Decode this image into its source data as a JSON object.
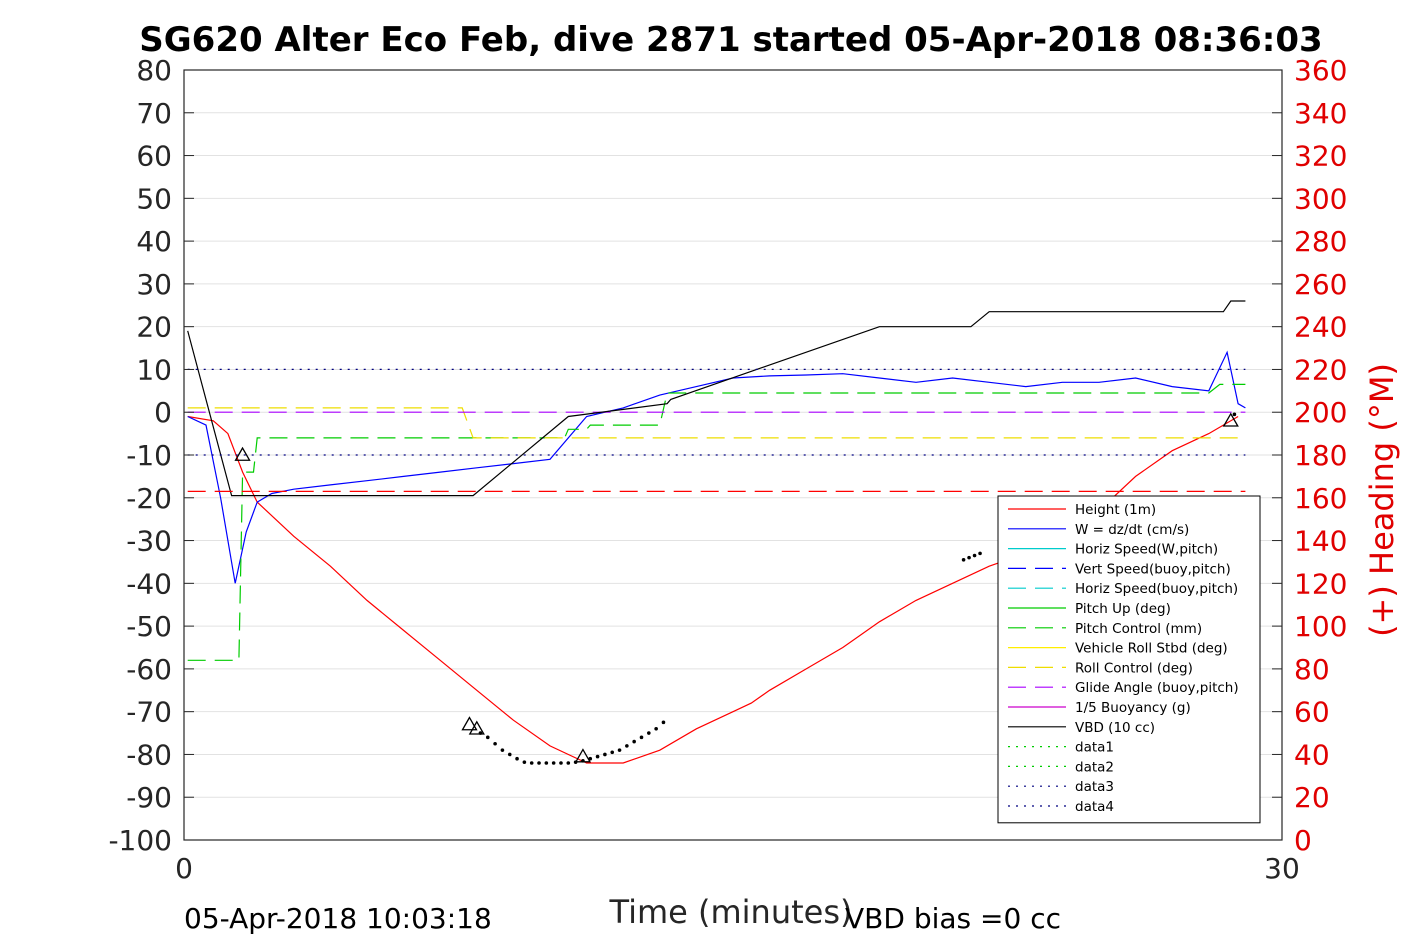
{
  "chart_data": {
    "type": "line",
    "title": "SG620 Alter Eco Feb, dive 2871 started 05-Apr-2018 08:36:03",
    "xlabel": "Time (minutes)",
    "ylabel_right": "(+) Heading (°M)",
    "xlim": [
      0,
      30
    ],
    "ylim_left": [
      -100,
      80
    ],
    "ylim_right": [
      0,
      360
    ],
    "x_ticks": [
      "0",
      "30"
    ],
    "y_ticks_left": [
      "80",
      "70",
      "60",
      "50",
      "40",
      "30",
      "20",
      "10",
      "0",
      "-10",
      "-20",
      "-30",
      "-40",
      "-50",
      "-60",
      "-70",
      "-80",
      "-90",
      "-100"
    ],
    "y_ticks_right": [
      "360",
      "340",
      "320",
      "300",
      "280",
      "260",
      "240",
      "220",
      "200",
      "180",
      "160",
      "140",
      "120",
      "100",
      "80",
      "60",
      "40",
      "20",
      "0"
    ],
    "grid": "horizontal",
    "legend_position": "bottom-right",
    "footer_left": "05-Apr-2018 10:03:18",
    "footer_right": "VBD bias =0 cc",
    "series": [
      {
        "name": "Height (1m)",
        "color": "#ff0000",
        "style": "solid",
        "x": [
          0.1,
          0.8,
          1.2,
          1.6,
          2.0,
          3,
          4,
          5,
          6,
          7,
          8,
          9,
          10,
          11,
          12,
          13,
          14,
          15,
          15.5,
          16,
          17,
          18,
          19,
          20,
          21,
          22,
          23,
          24,
          25,
          26,
          27,
          28,
          28.8
        ],
        "y": [
          -1,
          -2,
          -5,
          -14,
          -21,
          -29,
          -36,
          -44,
          -51,
          -58,
          -65,
          -72,
          -78,
          -82,
          -82,
          -79,
          -74,
          -70,
          -68,
          -65,
          -60,
          -55,
          -49,
          -44,
          -40,
          -36,
          -33,
          -29,
          -23,
          -15,
          -9,
          -5,
          -1
        ]
      },
      {
        "name": "W = dz/dt (cm/s)",
        "color": "#0000ff",
        "style": "solid",
        "x": [
          0.1,
          0.6,
          1.0,
          1.4,
          1.7,
          2.0,
          2.4,
          3,
          4,
          5,
          6,
          7,
          8,
          9,
          10,
          11,
          11.5,
          12,
          13,
          14,
          15,
          16,
          17,
          18,
          19,
          20,
          21,
          22,
          23,
          24,
          25,
          26,
          27,
          28,
          28.5,
          28.8,
          29.0
        ],
        "y": [
          -1,
          -3,
          -20,
          -40,
          -28,
          -21,
          -19,
          -18,
          -17,
          -16,
          -15,
          -14,
          -13,
          -12,
          -11,
          -1,
          0,
          1,
          4,
          6,
          8,
          8.5,
          8.7,
          9,
          8,
          7,
          8,
          7,
          6,
          7,
          7,
          8,
          6,
          5,
          14,
          2,
          1
        ]
      },
      {
        "name": "Horiz Speed(W,pitch)",
        "color": "#00cccc",
        "style": "solid",
        "x": [],
        "y": []
      },
      {
        "name": "Vert Speed(buoy,pitch)",
        "color": "#0000ff",
        "style": "dash",
        "x": [],
        "y": []
      },
      {
        "name": "Horiz Speed(buoy,pitch)",
        "color": "#00cccc",
        "style": "dash",
        "x": [],
        "y": []
      },
      {
        "name": "Pitch Up (deg)",
        "color": "#00cc00",
        "style": "solid",
        "x": [],
        "y": []
      },
      {
        "name": "Pitch Control (mm)",
        "color": "#00cc00",
        "style": "dash",
        "x": [
          0.1,
          1.5,
          1.6,
          1.9,
          2.0,
          7.8,
          7.9,
          10.4,
          10.5,
          11.0,
          11.1,
          13.0,
          13.2,
          28.0,
          28.3,
          29.0
        ],
        "y": [
          -58,
          -58,
          -14,
          -14,
          -6,
          -6,
          -6,
          -6,
          -4,
          -4,
          -3,
          -3,
          4.5,
          4.5,
          6.5,
          6.5
        ]
      },
      {
        "name": "Vehicle Roll Stbd (deg)",
        "color": "#ffee00",
        "style": "solid",
        "x": [],
        "y": []
      },
      {
        "name": "Roll Control (deg)",
        "color": "#eedd00",
        "style": "dash",
        "x": [
          0.1,
          7.6,
          7.9,
          29.0
        ],
        "y": [
          1,
          1,
          -6,
          -6
        ]
      },
      {
        "name": "Glide Angle (buoy,pitch)",
        "color": "#aa00ff",
        "style": "dash",
        "x": [
          0.1,
          29.0
        ],
        "y": [
          0,
          0
        ]
      },
      {
        "name": "1/5 Buoyancy (g)",
        "color": "#cc00cc",
        "style": "solid",
        "x": [],
        "y": []
      },
      {
        "name": "VBD (10 cc)",
        "color": "#000000",
        "style": "solid",
        "x": [
          0.1,
          1.3,
          7.9,
          10.5,
          13.2,
          13.3,
          19.0,
          21.5,
          22.0,
          28.4,
          28.6,
          29.0
        ],
        "y": [
          19,
          -19.5,
          -19.5,
          -1,
          2,
          3,
          20,
          20,
          23.5,
          23.5,
          26,
          26
        ]
      },
      {
        "name": "data1",
        "color": "#00cc00",
        "style": "dot",
        "x": [],
        "y": []
      },
      {
        "name": "data2",
        "color": "#00cc00",
        "style": "dot",
        "x": [],
        "y": []
      },
      {
        "name": "data3",
        "color": "#000080",
        "style": "dot",
        "x": [
          0.1,
          29.0
        ],
        "y": [
          10,
          10
        ]
      },
      {
        "name": "data4",
        "color": "#000080",
        "style": "dot",
        "x": [
          0.1,
          29.0
        ],
        "y": [
          -10,
          -10
        ]
      },
      {
        "name": "",
        "color": "#ff0000",
        "style": "dash",
        "legend": false,
        "x": [
          0.1,
          29.0
        ],
        "y": [
          -18.5,
          -18.5
        ]
      }
    ],
    "markers_triangle": [
      {
        "x": 1.6,
        "y": -10
      },
      {
        "x": 7.8,
        "y": -73
      },
      {
        "x": 8.0,
        "y": -74
      },
      {
        "x": 10.9,
        "y": -80.5
      },
      {
        "x": 28.6,
        "y": -2
      }
    ],
    "marker_dots": {
      "x": [
        8.1,
        8.3,
        8.5,
        8.7,
        8.9,
        9.1,
        9.3,
        9.5,
        9.7,
        9.9,
        10.1,
        10.3,
        10.5,
        10.7,
        10.9,
        11.1,
        11.3,
        11.5,
        11.7,
        11.9,
        12.1,
        12.3,
        12.5,
        12.7,
        12.9,
        13.1,
        21.3,
        21.45,
        21.6,
        21.75,
        28.7
      ],
      "y": [
        -75,
        -76,
        -77.5,
        -79,
        -80,
        -81,
        -81.8,
        -82,
        -82,
        -82,
        -82,
        -82,
        -82,
        -81.8,
        -81.5,
        -81,
        -80.5,
        -80,
        -79.5,
        -79,
        -78,
        -77,
        -76,
        -75,
        -74,
        -72.5,
        -34.5,
        -34,
        -33.5,
        -33,
        -0.5
      ]
    }
  }
}
